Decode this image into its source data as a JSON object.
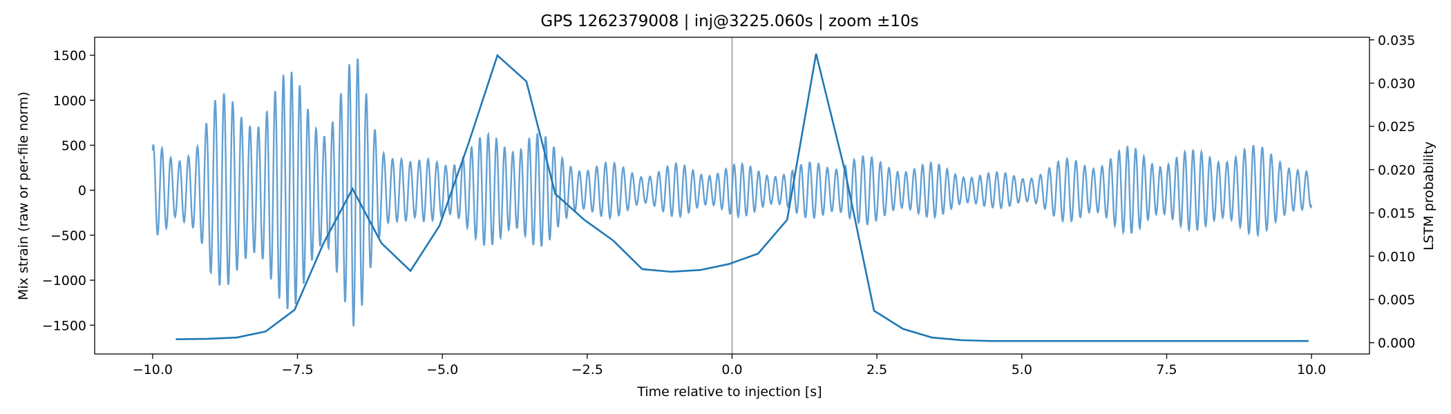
{
  "chart_data": {
    "type": "line",
    "title": "GPS 1262379008 | inj@3225.060s | zoom ±10s",
    "xlabel": "Time relative to injection [s]",
    "ylabel_left": "Mix strain (raw or per-file norm)",
    "ylabel_right": "LSTM probability",
    "xlim": [
      -11.0,
      11.0
    ],
    "ylim_left": [
      -1820,
      1700
    ],
    "ylim_right": [
      -0.0013,
      0.0353
    ],
    "x_ticks": [
      -10.0,
      -7.5,
      -5.0,
      -2.5,
      0.0,
      2.5,
      5.0,
      7.5,
      10.0
    ],
    "x_tick_labels": [
      "−10.0",
      "−7.5",
      "−5.0",
      "−2.5",
      "0.0",
      "2.5",
      "5.0",
      "7.5",
      "10.0"
    ],
    "y_left_ticks": [
      -1500,
      -1000,
      -500,
      0,
      500,
      1000,
      1500
    ],
    "y_left_tick_labels": [
      "−1500",
      "−1000",
      "−500",
      "0",
      "500",
      "1000",
      "1500"
    ],
    "y_right_ticks": [
      0.0,
      0.005,
      0.01,
      0.015,
      0.02,
      0.025,
      0.03,
      0.035
    ],
    "y_right_tick_labels": [
      "0.000",
      "0.005",
      "0.010",
      "0.015",
      "0.020",
      "0.025",
      "0.030",
      "0.035"
    ],
    "grid": false,
    "vertical_marker_x": 0.0,
    "series": [
      {
        "axis": "left",
        "style": "oscillating",
        "color": "#5b9bd1",
        "x_range": [
          -10.0,
          10.0
        ],
        "approx_carrier_hz": 6.8,
        "envelope": {
          "x": [
            -10.0,
            -9.6,
            -9.0,
            -8.5,
            -8.0,
            -7.5,
            -7.0,
            -6.5,
            -6.0,
            -5.5,
            -5.0,
            -4.5,
            -4.0,
            -3.5,
            -3.0,
            -2.5,
            -2.0,
            -1.5,
            -1.0,
            -0.5,
            0.0,
            0.5,
            1.0,
            1.5,
            2.0,
            2.5,
            3.0,
            3.5,
            4.0,
            4.5,
            5.0,
            5.5,
            6.0,
            6.5,
            7.0,
            7.5,
            8.0,
            8.5,
            9.0,
            9.5,
            10.0
          ],
          "amplitude": [
            550,
            350,
            1150,
            1000,
            1400,
            1300,
            1050,
            1550,
            700,
            300,
            450,
            550,
            700,
            800,
            450,
            350,
            300,
            250,
            300,
            280,
            300,
            280,
            250,
            350,
            450,
            350,
            350,
            300,
            250,
            200,
            200,
            300,
            400,
            450,
            500,
            450,
            450,
            550,
            500,
            500,
            200
          ]
        }
      },
      {
        "axis": "right",
        "style": "line",
        "color": "#1f77b4",
        "x": [
          -9.6,
          -9.05,
          -8.55,
          -8.05,
          -7.55,
          -7.05,
          -6.55,
          -6.05,
          -5.55,
          -5.05,
          -4.55,
          -4.05,
          -3.55,
          -3.05,
          -2.55,
          -2.05,
          -1.55,
          -1.05,
          -0.55,
          -0.05,
          0.45,
          0.95,
          1.45,
          1.95,
          2.45,
          2.95,
          3.45,
          3.95,
          4.45,
          4.95,
          5.45,
          5.95,
          6.45,
          6.95,
          7.45,
          7.95,
          8.45,
          8.95,
          9.45,
          9.95
        ],
        "values": [
          0.0004,
          0.00045,
          0.0006,
          0.0013,
          0.0038,
          0.0115,
          0.0178,
          0.0115,
          0.0083,
          0.0135,
          0.023,
          0.0332,
          0.0302,
          0.0172,
          0.0142,
          0.0118,
          0.0085,
          0.0082,
          0.0084,
          0.0091,
          0.0103,
          0.0142,
          0.0334,
          0.0198,
          0.0037,
          0.0016,
          0.0006,
          0.0003,
          0.0002,
          0.0002,
          0.0002,
          0.0002,
          0.0002,
          0.0002,
          0.0002,
          0.0002,
          0.0002,
          0.0002,
          0.0002,
          0.0002
        ]
      }
    ]
  }
}
